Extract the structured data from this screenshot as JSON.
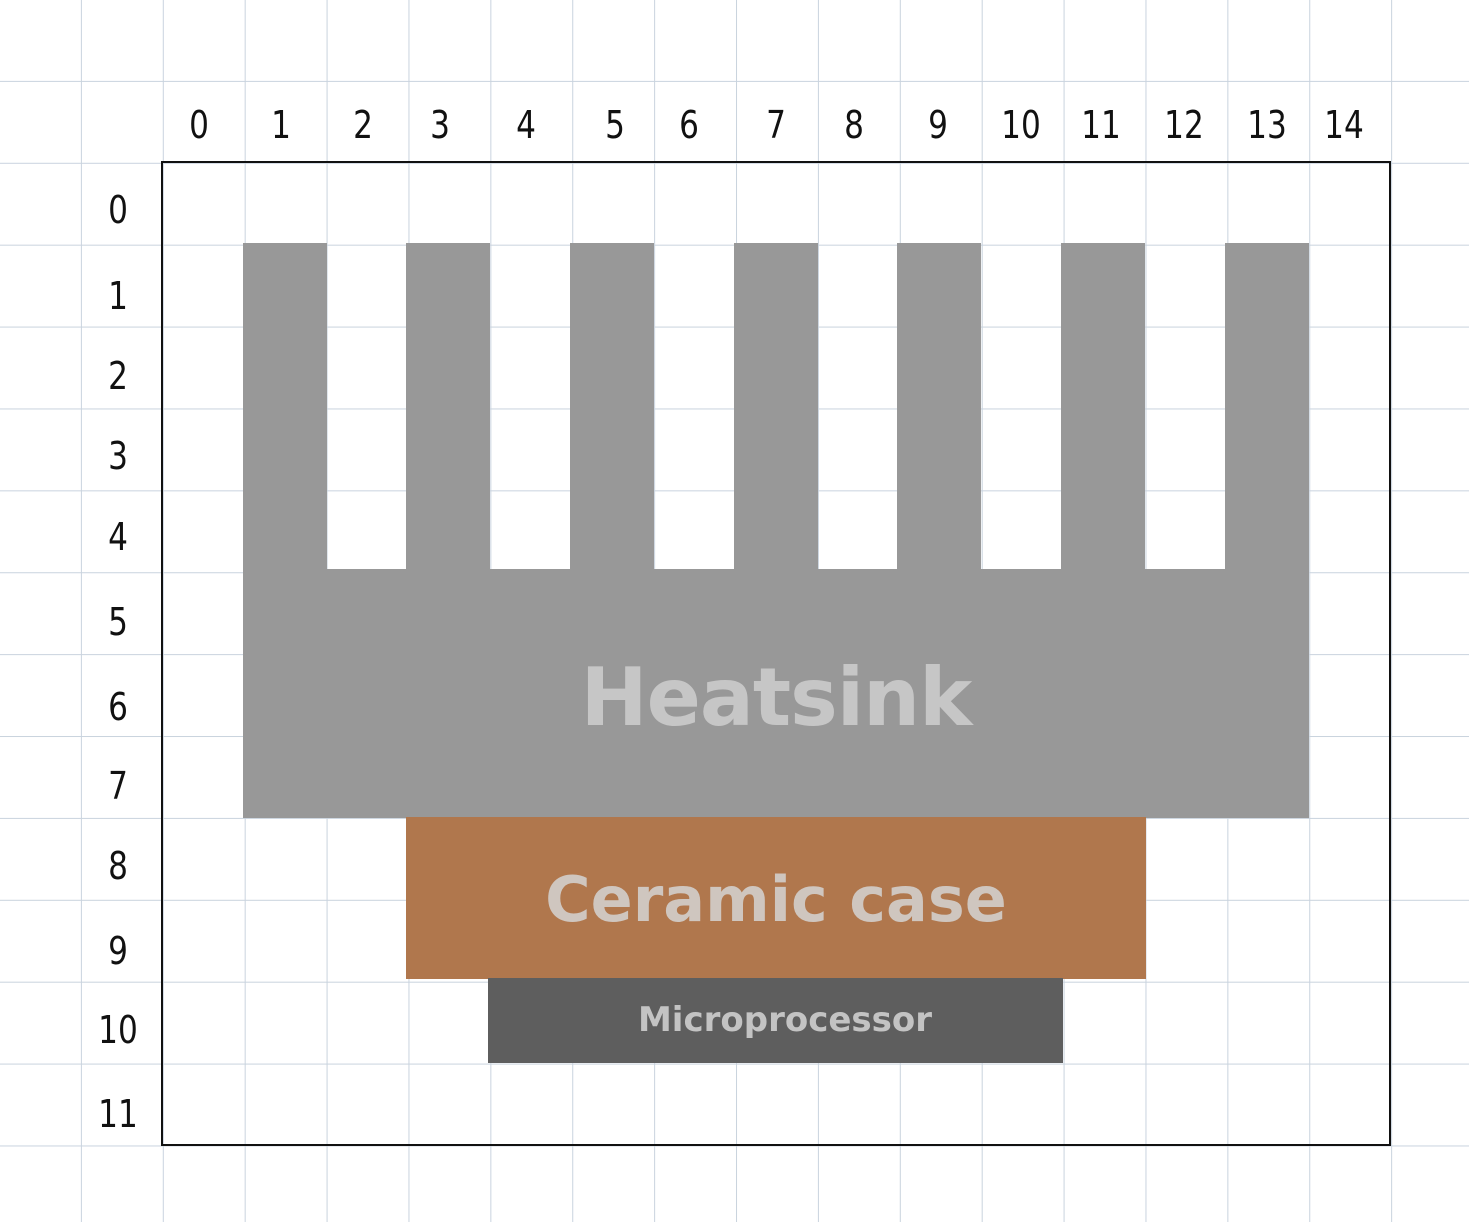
{
  "grid": {
    "columns": [
      "0",
      "1",
      "2",
      "3",
      "4",
      "5",
      "6",
      "7",
      "8",
      "9",
      "10",
      "11",
      "12",
      "13",
      "14"
    ],
    "rows": [
      "0",
      "1",
      "2",
      "3",
      "4",
      "5",
      "6",
      "7",
      "8",
      "9",
      "10",
      "11"
    ]
  },
  "components": {
    "heatsink": {
      "label": "Heatsink",
      "color": "#989898",
      "label_color": "#c6c6c6"
    },
    "ceramic_case": {
      "label": "Ceramic case",
      "color": "#b0774d",
      "label_color": "#cfc6bf"
    },
    "microprocessor": {
      "label": "Microprocessor",
      "color": "#5e5e5e",
      "label_color": "#c3c3c3"
    }
  }
}
